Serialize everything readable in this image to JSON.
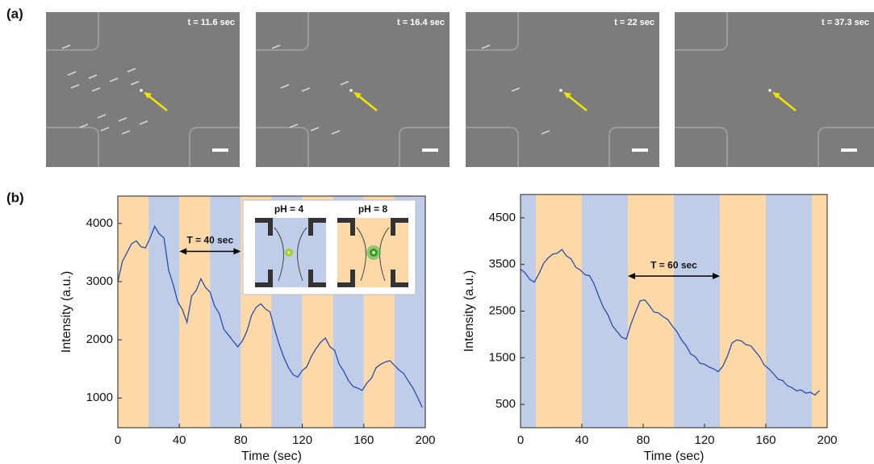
{
  "panel_a": {
    "label": "(a)",
    "frames": [
      "t = 11.6 sec",
      "t = 16.4 sec",
      "t = 22 sec",
      "t = 37.3 sec"
    ]
  },
  "panel_b": {
    "label": "(b)"
  },
  "chart_data": [
    {
      "type": "line",
      "xlabel": "Time (sec)",
      "ylabel": "Intensity (a.u.)",
      "xlim": [
        0,
        200
      ],
      "ylim": [
        490,
        4470
      ],
      "xticks": [
        0,
        40,
        80,
        120,
        160,
        200
      ],
      "yticks": [
        1000,
        2000,
        3000,
        4000
      ],
      "color": "#2a4fa8",
      "bands": [
        {
          "from": 0,
          "to": 20,
          "color": "#fdd9a8"
        },
        {
          "from": 20,
          "to": 40,
          "color": "#c0cde9"
        },
        {
          "from": 40,
          "to": 60,
          "color": "#fdd9a8"
        },
        {
          "from": 60,
          "to": 80,
          "color": "#c0cde9"
        },
        {
          "from": 80,
          "to": 100,
          "color": "#fdd9a8"
        },
        {
          "from": 100,
          "to": 120,
          "color": "#c0cde9"
        },
        {
          "from": 120,
          "to": 140,
          "color": "#fdd9a8"
        },
        {
          "from": 140,
          "to": 160,
          "color": "#c0cde9"
        },
        {
          "from": 160,
          "to": 180,
          "color": "#fdd9a8"
        },
        {
          "from": 180,
          "to": 200,
          "color": "#c0cde9"
        }
      ],
      "annotation": {
        "text": "T = 40 sec",
        "x": [
          40,
          80
        ],
        "y": 3520
      },
      "inset_labels": [
        "pH = 4",
        "pH = 8"
      ],
      "x": [
        0,
        3,
        6,
        9,
        12,
        15,
        18,
        21,
        24,
        27,
        30,
        33,
        36,
        39,
        42,
        45,
        48,
        51,
        54,
        57,
        60,
        63,
        66,
        69,
        72,
        75,
        78,
        81,
        84,
        87,
        90,
        93,
        96,
        99,
        102,
        105,
        108,
        111,
        114,
        117,
        120,
        123,
        126,
        129,
        132,
        135,
        138,
        141,
        144,
        147,
        150,
        153,
        156,
        159,
        162,
        165,
        168,
        171,
        174,
        177,
        180,
        183,
        186,
        189,
        192,
        195,
        198
      ],
      "values": [
        3000,
        3350,
        3500,
        3650,
        3700,
        3600,
        3580,
        3750,
        3950,
        3820,
        3750,
        3200,
        2950,
        2650,
        2520,
        2300,
        2750,
        2850,
        3050,
        2900,
        2820,
        2580,
        2450,
        2180,
        2080,
        1980,
        1880,
        1980,
        2150,
        2420,
        2560,
        2620,
        2530,
        2480,
        2180,
        1920,
        1700,
        1520,
        1400,
        1360,
        1470,
        1540,
        1720,
        1850,
        1960,
        2030,
        1880,
        1820,
        1580,
        1460,
        1300,
        1200,
        1170,
        1130,
        1260,
        1340,
        1520,
        1580,
        1620,
        1640,
        1560,
        1480,
        1420,
        1290,
        1170,
        1010,
        840
      ]
    },
    {
      "type": "line",
      "xlabel": "Time (sec)",
      "ylabel": "Intensity (a.u.)",
      "xlim": [
        0,
        200
      ],
      "ylim": [
        0,
        5000
      ],
      "xticks": [
        0,
        40,
        80,
        120,
        160,
        200
      ],
      "yticks": [
        500,
        1500,
        2500,
        3500,
        4500
      ],
      "color": "#2a4fa8",
      "bands": [
        {
          "from": 0,
          "to": 10,
          "color": "#c0cde9"
        },
        {
          "from": 10,
          "to": 40,
          "color": "#fdd9a8"
        },
        {
          "from": 40,
          "to": 70,
          "color": "#c0cde9"
        },
        {
          "from": 70,
          "to": 100,
          "color": "#fdd9a8"
        },
        {
          "from": 100,
          "to": 130,
          "color": "#c0cde9"
        },
        {
          "from": 130,
          "to": 160,
          "color": "#fdd9a8"
        },
        {
          "from": 160,
          "to": 190,
          "color": "#c0cde9"
        },
        {
          "from": 190,
          "to": 200,
          "color": "#fdd9a8"
        }
      ],
      "annotation": {
        "text": "T = 60 sec",
        "x": [
          70,
          130
        ],
        "y": 3250
      },
      "x": [
        0,
        3,
        6,
        9,
        12,
        15,
        18,
        21,
        24,
        27,
        30,
        33,
        36,
        39,
        42,
        45,
        48,
        51,
        54,
        57,
        60,
        63,
        66,
        69,
        72,
        75,
        78,
        81,
        84,
        87,
        90,
        93,
        96,
        99,
        102,
        105,
        108,
        111,
        114,
        117,
        120,
        123,
        126,
        129,
        132,
        135,
        138,
        141,
        144,
        147,
        150,
        153,
        156,
        159,
        162,
        165,
        168,
        171,
        174,
        177,
        180,
        183,
        186,
        189,
        192,
        195
      ],
      "values": [
        3400,
        3320,
        3180,
        3120,
        3300,
        3520,
        3640,
        3720,
        3740,
        3820,
        3680,
        3620,
        3440,
        3380,
        3280,
        3260,
        3080,
        2820,
        2580,
        2420,
        2180,
        2060,
        1940,
        1900,
        2220,
        2480,
        2720,
        2740,
        2620,
        2480,
        2460,
        2380,
        2320,
        2180,
        2060,
        1880,
        1760,
        1580,
        1520,
        1380,
        1360,
        1300,
        1260,
        1200,
        1320,
        1540,
        1820,
        1880,
        1860,
        1780,
        1760,
        1640,
        1520,
        1340,
        1260,
        1160,
        1040,
        1010,
        900,
        860,
        790,
        810,
        740,
        760,
        700,
        800
      ]
    }
  ]
}
